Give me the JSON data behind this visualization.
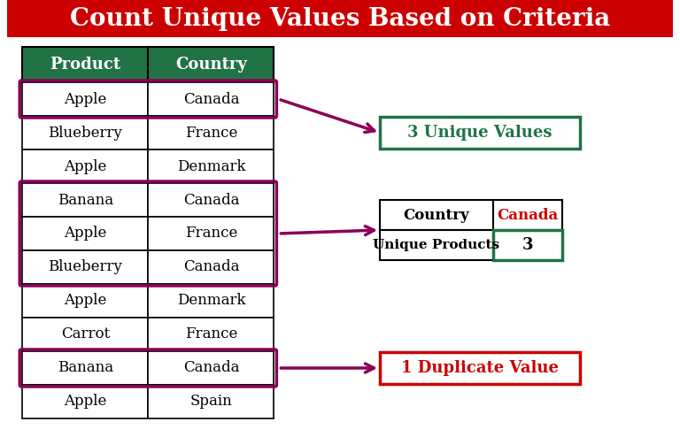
{
  "title": "Count Unique Values Based on Criteria",
  "title_bg": "#cc0000",
  "title_color": "#ffffff",
  "title_fontsize": 20,
  "bg_color": "#ffffff",
  "table_products": [
    "Apple",
    "Blueberry",
    "Apple",
    "Banana",
    "Apple",
    "Blueberry",
    "Apple",
    "Carrot",
    "Banana",
    "Apple"
  ],
  "table_countries": [
    "Canada",
    "France",
    "Denmark",
    "Canada",
    "France",
    "Canada",
    "Denmark",
    "France",
    "Canada",
    "Spain"
  ],
  "header_bg": "#217346",
  "header_color": "#ffffff",
  "cell_border_normal": "#000000",
  "cell_border_highlight": "#8B0057",
  "highlight_rows": [
    0,
    3,
    4,
    5,
    8
  ],
  "col1_header": "Product",
  "col2_header": "Country",
  "unique_box_color": "#217346",
  "unique_box_text": "3 Unique Values",
  "unique_box_text_color": "#217346",
  "duplicate_box_color": "#cc0000",
  "duplicate_box_text": "1 Duplicate Value",
  "duplicate_box_text_color": "#cc0000",
  "arrow_color": "#8B0057",
  "small_table_col1": [
    "Country",
    "Unique Products"
  ],
  "small_table_col2_text": "Canada",
  "small_table_col2_val": "3",
  "small_table_col2_text_color": "#cc0000",
  "small_table_border": "#000000",
  "small_table_val_border": "#217346"
}
